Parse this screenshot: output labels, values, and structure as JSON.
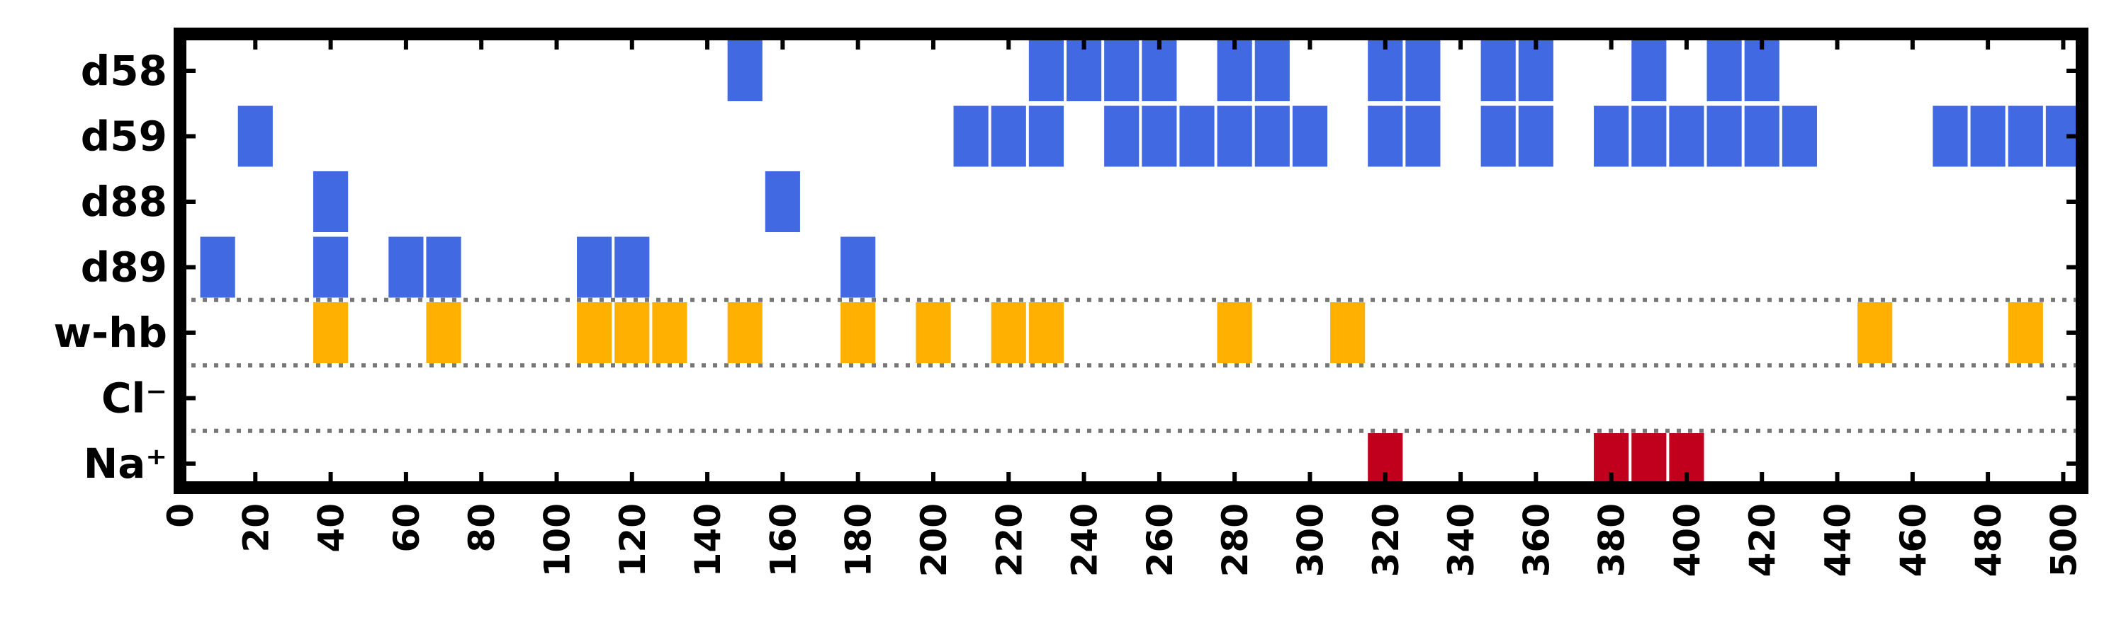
{
  "chart_data": {
    "type": "heatmap",
    "title": "",
    "xlabel": "",
    "ylabel": "",
    "xlim": [
      0,
      505
    ],
    "x_ticks": [
      "0",
      "20",
      "40",
      "60",
      "80",
      "100",
      "120",
      "140",
      "160",
      "180",
      "200",
      "220",
      "240",
      "260",
      "280",
      "300",
      "320",
      "340",
      "360",
      "380",
      "400",
      "420",
      "440",
      "460",
      "480",
      "500"
    ],
    "x_tick_values": [
      0,
      20,
      40,
      60,
      80,
      100,
      120,
      140,
      160,
      180,
      200,
      220,
      240,
      260,
      280,
      300,
      320,
      340,
      360,
      380,
      400,
      420,
      440,
      460,
      480,
      500
    ],
    "bin_width": 10,
    "grid": false,
    "separators_after_rows": [
      "d89",
      "w-hb",
      "Cl⁻"
    ],
    "rows": [
      {
        "label": "d58",
        "color": "#4169e1",
        "x": [
          150,
          230,
          240,
          250,
          260,
          280,
          290,
          320,
          330,
          350,
          360,
          390,
          410,
          420
        ]
      },
      {
        "label": "d59",
        "color": "#4169e1",
        "x": [
          20,
          210,
          220,
          230,
          250,
          260,
          270,
          280,
          290,
          300,
          320,
          330,
          350,
          360,
          380,
          390,
          400,
          410,
          420,
          430,
          470,
          480,
          490,
          500
        ]
      },
      {
        "label": "d88",
        "color": "#4169e1",
        "x": [
          40,
          160
        ]
      },
      {
        "label": "d89",
        "color": "#4169e1",
        "x": [
          10,
          40,
          60,
          70,
          110,
          120,
          180
        ]
      },
      {
        "label": "w-hb",
        "color": "#ffb000",
        "x": [
          40,
          70,
          110,
          120,
          130,
          150,
          180,
          200,
          220,
          230,
          280,
          310,
          450,
          490
        ]
      },
      {
        "label": "Cl⁻",
        "color": "#2a9d8f",
        "x": []
      },
      {
        "label": "Na⁺",
        "color": "#c0001c",
        "x": [
          320,
          380,
          390,
          400
        ]
      }
    ]
  }
}
